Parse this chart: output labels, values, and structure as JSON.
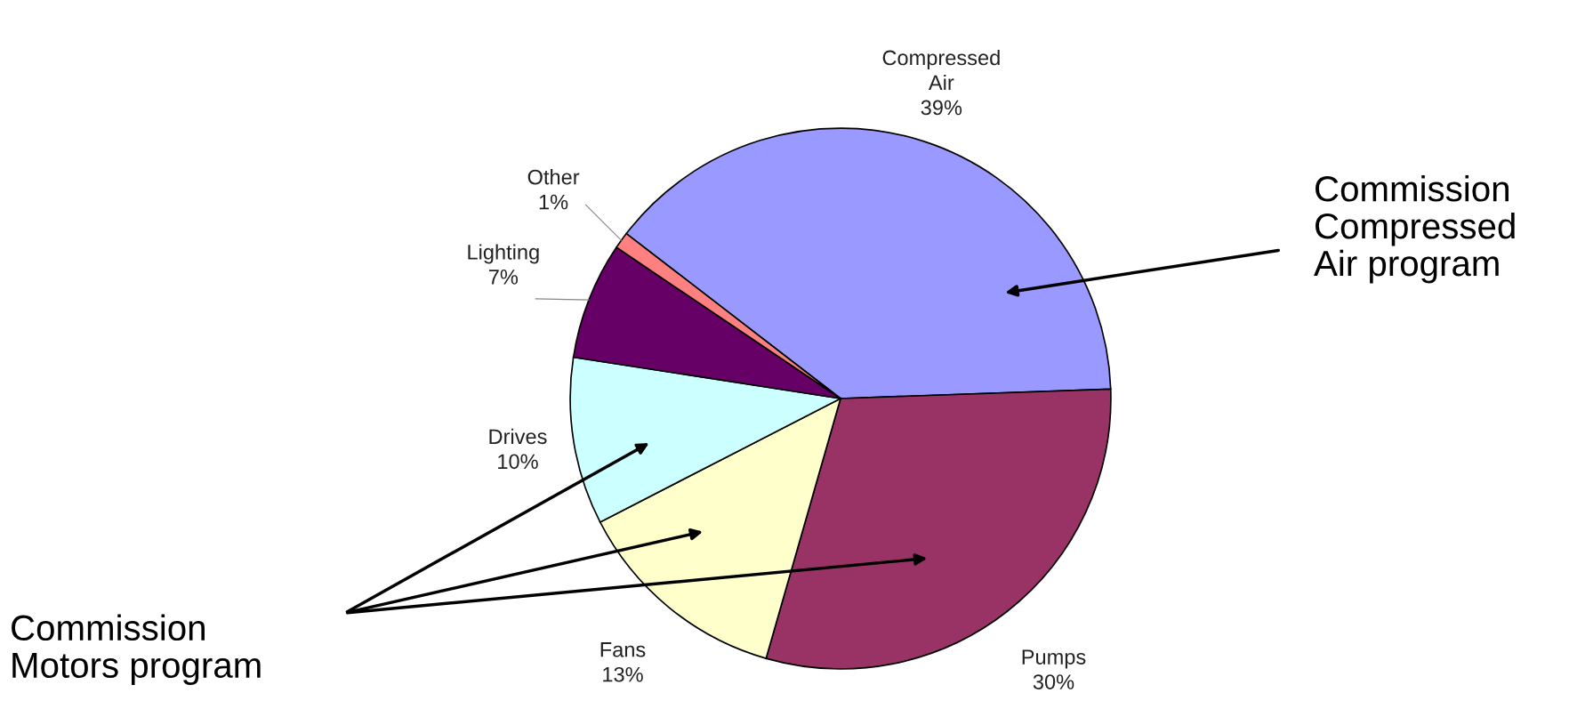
{
  "chart_data": {
    "type": "pie",
    "categories": [
      "Compressed Air",
      "Pumps",
      "Fans",
      "Drives",
      "Lighting",
      "Other"
    ],
    "values": [
      39,
      30,
      13,
      10,
      7,
      1
    ],
    "colors": [
      "#9999ff",
      "#993366",
      "#ffffcc",
      "#ccffff",
      "#660066",
      "#ff8080"
    ],
    "value_labels": [
      "39%",
      "30%",
      "13%",
      "10%",
      "7%",
      "1%"
    ],
    "annotations": [
      "Commission\nCompressed\nAir program",
      "Commission\nMotors program"
    ]
  }
}
